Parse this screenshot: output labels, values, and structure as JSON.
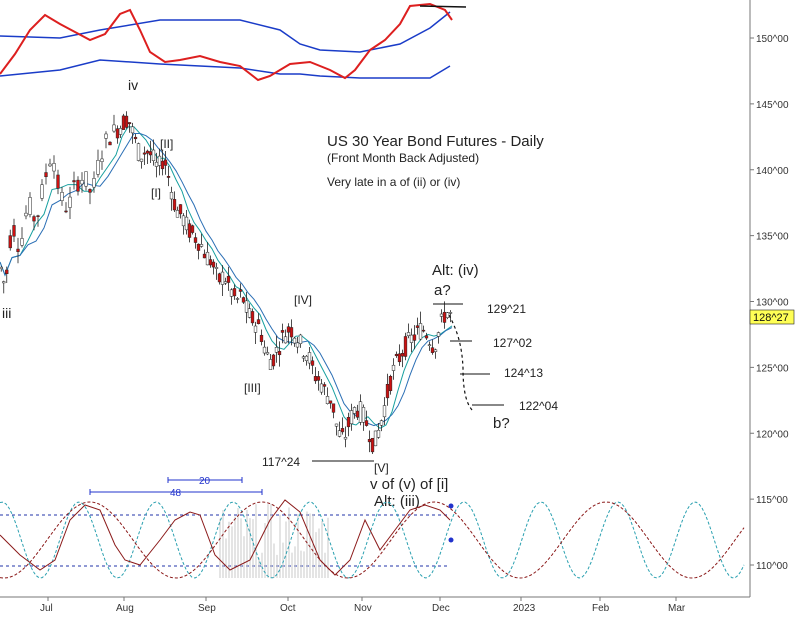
{
  "chart_data": {
    "type": "candlestick",
    "title": "US 30 Year Bond Futures - Daily",
    "subtitle": "(Front Month Back Adjusted)",
    "note": "Very late in a of (ii) or (iv)",
    "y_ticks": [
      "110^00",
      "115^00",
      "120^00",
      "125^00",
      "130^00",
      "135^00",
      "140^00",
      "145^00",
      "150^00"
    ],
    "y_tick_values": [
      110,
      115,
      120,
      125,
      130,
      135,
      140,
      145,
      150
    ],
    "x_ticks": [
      "Jul",
      "Aug",
      "Sep",
      "Oct",
      "Nov",
      "Dec",
      "2023",
      "Feb",
      "Mar"
    ],
    "last_price": "128^27",
    "last_price_value": 128.84,
    "level_labels": [
      {
        "text": "129^21",
        "value": 129.66
      },
      {
        "text": "127^02",
        "value": 127.06
      },
      {
        "text": "124^13",
        "value": 124.41
      },
      {
        "text": "122^04",
        "value": 122.13
      },
      {
        "text": "117^24",
        "value": 117.75
      }
    ],
    "wave_labels": {
      "iii": "iii",
      "iv": "iv",
      "I": "[I]",
      "II": "[II]",
      "III": "[III]",
      "IV": "[IV]",
      "V": "[V]",
      "v_of": "v of (v) of [i]",
      "alt_iii": "Alt: (iii)",
      "alt_iv": "Alt: (iv)",
      "a": "a?",
      "b": "b?"
    },
    "cycles": [
      {
        "label": "20",
        "period_days": 20
      },
      {
        "label": "48",
        "period_days": 48
      }
    ],
    "colors": {
      "up": "#ffffff",
      "down": "#cc1111",
      "ma": "#2b6fb5",
      "ma2": "#18a0a0",
      "band": "#1a3cc8",
      "osc": "#dd1f1f",
      "cyc_red": "#8b1a1a",
      "cyc_teal": "#2aa0b0"
    }
  }
}
